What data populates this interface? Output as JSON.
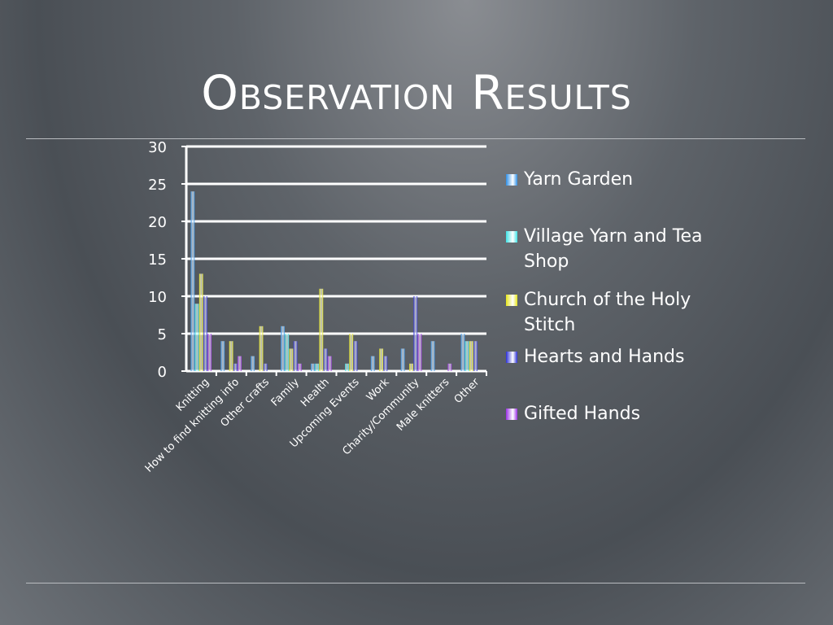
{
  "slide": {
    "title": "Observation Results"
  },
  "chart_data": {
    "type": "bar",
    "categories": [
      "Knitting",
      "How to find knitting info",
      "Other crafts",
      "Family",
      "Health",
      "Upcoming Events",
      "Work",
      "Charity/Community",
      "Male knitters",
      "Other"
    ],
    "series": [
      {
        "name": "Yarn Garden",
        "color": "#2f8fe6",
        "values": [
          24,
          4,
          2,
          6,
          1,
          0,
          2,
          3,
          4,
          5
        ]
      },
      {
        "name": "Village Yarn and Tea Shop",
        "color": "#3fe3e6",
        "values": [
          9,
          0,
          0,
          5,
          1,
          1,
          0,
          0,
          0,
          4
        ]
      },
      {
        "name": "Church of the Holy Stitch",
        "color": "#e6e619",
        "values": [
          13,
          4,
          6,
          3,
          11,
          5,
          3,
          1,
          0,
          4
        ]
      },
      {
        "name": "Hearts and Hands",
        "color": "#2b2fd6",
        "values": [
          10,
          1,
          1,
          4,
          3,
          4,
          2,
          10,
          0,
          4
        ]
      },
      {
        "name": "Gifted Hands",
        "color": "#9b30e6",
        "values": [
          5,
          2,
          0,
          1,
          2,
          0,
          0,
          5,
          1,
          0
        ]
      }
    ],
    "ylim": [
      0,
      30
    ],
    "yticks": [
      0,
      5,
      10,
      15,
      20,
      25,
      30
    ],
    "grid": true,
    "legend_position": "right"
  }
}
